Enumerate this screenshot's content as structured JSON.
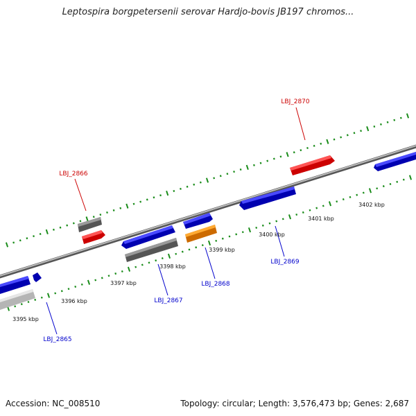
{
  "title": "Leptospira borgpetersenii serovar Hardjo-bovis JB197 chromos...",
  "footer": {
    "accession": "Accession: NC_008510",
    "summary": "Topology: circular; Length: 3,576,473 bp; Genes: 2,687"
  },
  "colors": {
    "forward_gene": "#1a1ae6",
    "reverse_gene": "#e60f0f",
    "grey_feature": "#666666",
    "light_feature": "#cccccc",
    "orange_feature": "#ff9900",
    "ticks": "#1a8c1a",
    "backbone": "#888888",
    "label_forward": "#0000cc",
    "label_reverse": "#cc0000"
  },
  "scale_labels": [
    "3395 kbp",
    "3396 kbp",
    "3397 kbp",
    "3398 kbp",
    "3399 kbp",
    "3400 kbp",
    "3401 kbp",
    "3402 kbp"
  ],
  "gene_labels": [
    {
      "id": "LBJ_2870",
      "strand": "reverse"
    },
    {
      "id": "LBJ_2866",
      "strand": "reverse"
    },
    {
      "id": "LBJ_2869",
      "strand": "forward"
    },
    {
      "id": "LBJ_2868",
      "strand": "forward"
    },
    {
      "id": "LBJ_2867",
      "strand": "forward"
    },
    {
      "id": "LBJ_2865",
      "strand": "forward"
    }
  ]
}
